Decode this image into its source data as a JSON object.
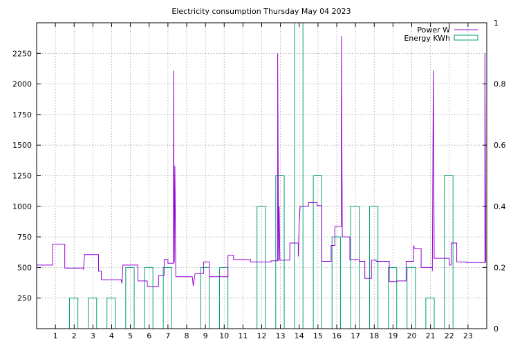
{
  "chart_data": {
    "type": "line",
    "title": "Electricity consumption Thursday May 04 2023",
    "xlabel": "",
    "ylabel": "",
    "x_ticks": [
      1,
      2,
      3,
      4,
      5,
      6,
      7,
      8,
      9,
      10,
      11,
      12,
      13,
      14,
      15,
      16,
      17,
      18,
      19,
      20,
      21,
      22,
      23
    ],
    "xlim": [
      0,
      24
    ],
    "y_ticks": [
      250,
      500,
      750,
      1000,
      1250,
      1500,
      1750,
      2000,
      2250
    ],
    "ylim": [
      0,
      2500
    ],
    "y2_ticks": [
      0,
      0.2,
      0.4,
      0.6,
      0.8,
      1
    ],
    "y2_tick_labels": [
      "0",
      "0.2",
      "0.4",
      "0.6",
      "0.8",
      "1"
    ],
    "y2lim": [
      0,
      1
    ],
    "grid": true,
    "legend_position": "top-right",
    "colors": {
      "power": "#9400d3",
      "energy": "#009e73"
    },
    "series": [
      {
        "name": "Power W",
        "type": "step-line",
        "axis": "left",
        "points": [
          [
            0,
            520
          ],
          [
            0.85,
            520
          ],
          [
            0.85,
            690
          ],
          [
            1.5,
            690
          ],
          [
            1.5,
            495
          ],
          [
            2.5,
            495
          ],
          [
            2.5,
            480
          ],
          [
            2.55,
            605
          ],
          [
            3.3,
            605
          ],
          [
            3.3,
            470
          ],
          [
            3.45,
            470
          ],
          [
            3.45,
            400
          ],
          [
            4.5,
            400
          ],
          [
            4.55,
            370
          ],
          [
            4.6,
            520
          ],
          [
            5.4,
            520
          ],
          [
            5.4,
            390
          ],
          [
            5.9,
            390
          ],
          [
            5.9,
            345
          ],
          [
            6.5,
            345
          ],
          [
            6.5,
            435
          ],
          [
            6.8,
            435
          ],
          [
            6.8,
            565
          ],
          [
            7,
            565
          ],
          [
            7,
            535
          ],
          [
            7.3,
            535
          ],
          [
            7.3,
            2110
          ],
          [
            7.34,
            540
          ],
          [
            7.37,
            1330
          ],
          [
            7.42,
            425
          ],
          [
            8.3,
            425
          ],
          [
            8.35,
            350
          ],
          [
            8.45,
            450
          ],
          [
            8.9,
            450
          ],
          [
            8.9,
            545
          ],
          [
            9.2,
            545
          ],
          [
            9.2,
            425
          ],
          [
            10.2,
            425
          ],
          [
            10.2,
            600
          ],
          [
            10.5,
            600
          ],
          [
            10.5,
            565
          ],
          [
            11.4,
            565
          ],
          [
            11.4,
            545
          ],
          [
            12.5,
            545
          ],
          [
            12.5,
            555
          ],
          [
            12.85,
            555
          ],
          [
            12.85,
            2250
          ],
          [
            12.9,
            555
          ],
          [
            12.93,
            1000
          ],
          [
            12.97,
            560
          ],
          [
            13.5,
            560
          ],
          [
            13.5,
            700
          ],
          [
            13.95,
            700
          ],
          [
            13.95,
            590
          ],
          [
            14,
            870
          ],
          [
            14.05,
            1000
          ],
          [
            14.5,
            1000
          ],
          [
            14.5,
            1030
          ],
          [
            14.95,
            1030
          ],
          [
            14.95,
            1005
          ],
          [
            15.2,
            1005
          ],
          [
            15.2,
            550
          ],
          [
            15.7,
            550
          ],
          [
            15.7,
            680
          ],
          [
            15.9,
            680
          ],
          [
            15.9,
            835
          ],
          [
            16.25,
            835
          ],
          [
            16.25,
            2390
          ],
          [
            16.3,
            750
          ],
          [
            16.7,
            750
          ],
          [
            16.7,
            565
          ],
          [
            17.2,
            565
          ],
          [
            17.2,
            550
          ],
          [
            17.5,
            550
          ],
          [
            17.5,
            410
          ],
          [
            17.85,
            410
          ],
          [
            17.85,
            560
          ],
          [
            18.1,
            560
          ],
          [
            18.1,
            550
          ],
          [
            18.8,
            550
          ],
          [
            18.8,
            385
          ],
          [
            19.2,
            385
          ],
          [
            19.2,
            390
          ],
          [
            19.7,
            390
          ],
          [
            19.7,
            550
          ],
          [
            20.1,
            550
          ],
          [
            20.1,
            680
          ],
          [
            20.15,
            655
          ],
          [
            20.5,
            655
          ],
          [
            20.5,
            500
          ],
          [
            21.1,
            500
          ],
          [
            21.1,
            470
          ],
          [
            21.15,
            2110
          ],
          [
            21.2,
            575
          ],
          [
            22,
            575
          ],
          [
            22,
            520
          ],
          [
            22.1,
            520
          ],
          [
            22.1,
            700
          ],
          [
            22.4,
            700
          ],
          [
            22.4,
            545
          ],
          [
            22.9,
            545
          ],
          [
            22.9,
            540
          ],
          [
            23.9,
            540
          ],
          [
            23.9,
            2250
          ],
          [
            23.95,
            540
          ]
        ]
      },
      {
        "name": "Energy KWh",
        "type": "bars",
        "axis": "right",
        "bars": [
          [
            1.75,
            0.1
          ],
          [
            2.75,
            0.1
          ],
          [
            3.75,
            0.1
          ],
          [
            4.75,
            0.2
          ],
          [
            5.75,
            0.2
          ],
          [
            6.75,
            0.2
          ],
          [
            8.75,
            0.2
          ],
          [
            9.75,
            0.2
          ],
          [
            11.75,
            0.4
          ],
          [
            12.75,
            0.5
          ],
          [
            13.75,
            1.0
          ],
          [
            14.75,
            0.5
          ],
          [
            15.75,
            0.3
          ],
          [
            16.75,
            0.4
          ],
          [
            17.75,
            0.4
          ],
          [
            18.75,
            0.2
          ],
          [
            19.75,
            0.2
          ],
          [
            20.75,
            0.1
          ],
          [
            21.75,
            0.5
          ]
        ],
        "bar_width": 0.45
      }
    ]
  }
}
